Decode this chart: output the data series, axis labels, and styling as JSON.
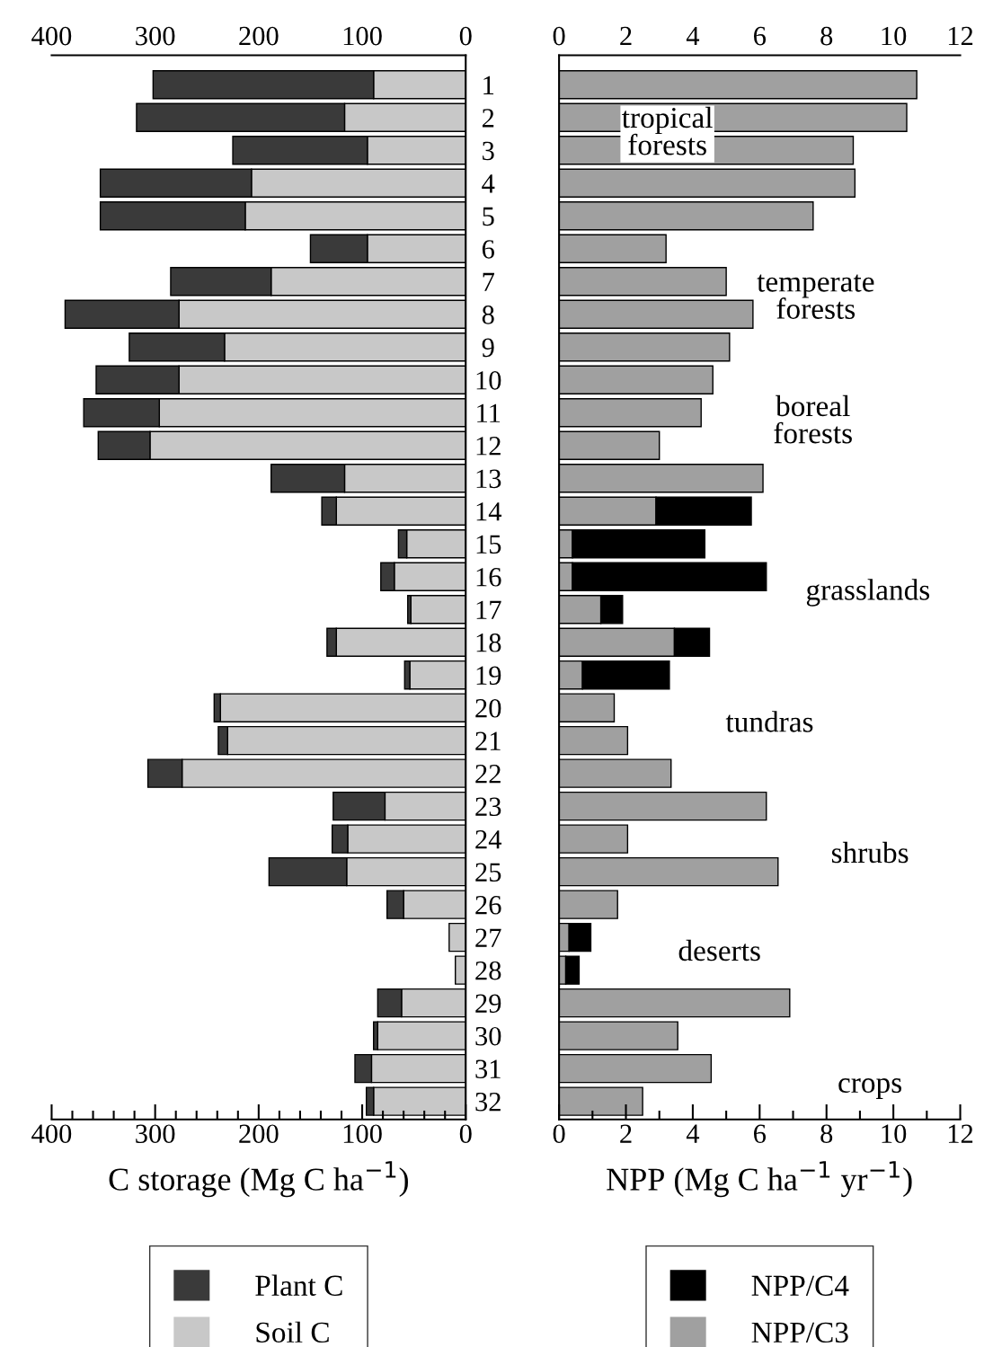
{
  "chart_data": [
    {
      "type": "bar",
      "orientation": "horizontal",
      "stacked": true,
      "categories": [
        "1",
        "2",
        "3",
        "4",
        "5",
        "6",
        "7",
        "8",
        "9",
        "10",
        "11",
        "12",
        "13",
        "14",
        "15",
        "16",
        "17",
        "18",
        "19",
        "20",
        "21",
        "22",
        "23",
        "24",
        "25",
        "26",
        "27",
        "28",
        "29",
        "30",
        "31",
        "32"
      ],
      "series": [
        {
          "name": "Soil C",
          "color": "#c8c8c8",
          "values": [
            89,
            117,
            95,
            207,
            213,
            95,
            188,
            277,
            233,
            277,
            296,
            305,
            117,
            125,
            57,
            69,
            53,
            125,
            54,
            237,
            230,
            274,
            78,
            114,
            115,
            60,
            16,
            10,
            62,
            85,
            91,
            89
          ]
        },
        {
          "name": "Plant C",
          "color": "#3a3a3a",
          "values": [
            213,
            201,
            130,
            146,
            140,
            55,
            97,
            110,
            92,
            80,
            73,
            50,
            71,
            14,
            8,
            13,
            3,
            9,
            5,
            6,
            9,
            33,
            50,
            15,
            75,
            16,
            null,
            null,
            23,
            4,
            16,
            7
          ]
        }
      ],
      "xlim": [
        400,
        0
      ],
      "xticks": [
        400,
        300,
        200,
        100,
        0
      ],
      "x2lim": [
        400,
        0
      ],
      "x2ticks": [
        400,
        300,
        200,
        100,
        0
      ],
      "xlabel": "C storage (Mg C ha$^{−1}$)",
      "legend": "bottom",
      "grid": false
    },
    {
      "type": "bar",
      "orientation": "horizontal",
      "stacked": true,
      "categories": [
        "1",
        "2",
        "3",
        "4",
        "5",
        "6",
        "7",
        "8",
        "9",
        "10",
        "11",
        "12",
        "13",
        "14",
        "15",
        "16",
        "17",
        "18",
        "19",
        "20",
        "21",
        "22",
        "23",
        "24",
        "25",
        "26",
        "27",
        "28",
        "29",
        "30",
        "31",
        "32"
      ],
      "series": [
        {
          "name": "NPP/C3",
          "color": "#a0a0a0",
          "values": [
            10.7,
            10.4,
            8.8,
            8.85,
            7.6,
            3.2,
            5.0,
            5.8,
            5.1,
            4.6,
            4.25,
            3.0,
            6.1,
            2.9,
            0.4,
            0.4,
            1.25,
            3.45,
            0.7,
            1.65,
            2.05,
            3.35,
            6.2,
            2.05,
            6.55,
            1.75,
            0.3,
            0.2,
            6.9,
            3.55,
            4.55,
            2.5
          ]
        },
        {
          "name": "NPP/C4",
          "color": "#000000",
          "values": [
            null,
            null,
            null,
            null,
            null,
            null,
            null,
            null,
            null,
            null,
            null,
            null,
            null,
            2.85,
            3.96,
            5.8,
            0.65,
            1.05,
            2.6,
            null,
            null,
            null,
            null,
            null,
            null,
            null,
            0.65,
            0.4,
            null,
            null,
            null,
            null
          ]
        }
      ],
      "xlim": [
        0,
        12
      ],
      "xticks": [
        0,
        2,
        4,
        6,
        8,
        10,
        12
      ],
      "x2lim": [
        0,
        12
      ],
      "x2ticks": [
        0,
        2,
        4,
        6,
        8,
        10,
        12
      ],
      "xlabel": "NPP (Mg C ha$^{−1}$ yr$^{−1}$)",
      "legend": "bottom",
      "grid": false,
      "tick_labels": "x",
      "annotations": [
        "tropical\nforests",
        "temperate\nforests",
        "boreal\nforests",
        "grasslands",
        "tundras",
        "shrubs",
        "deserts",
        "crops"
      ]
    }
  ]
}
